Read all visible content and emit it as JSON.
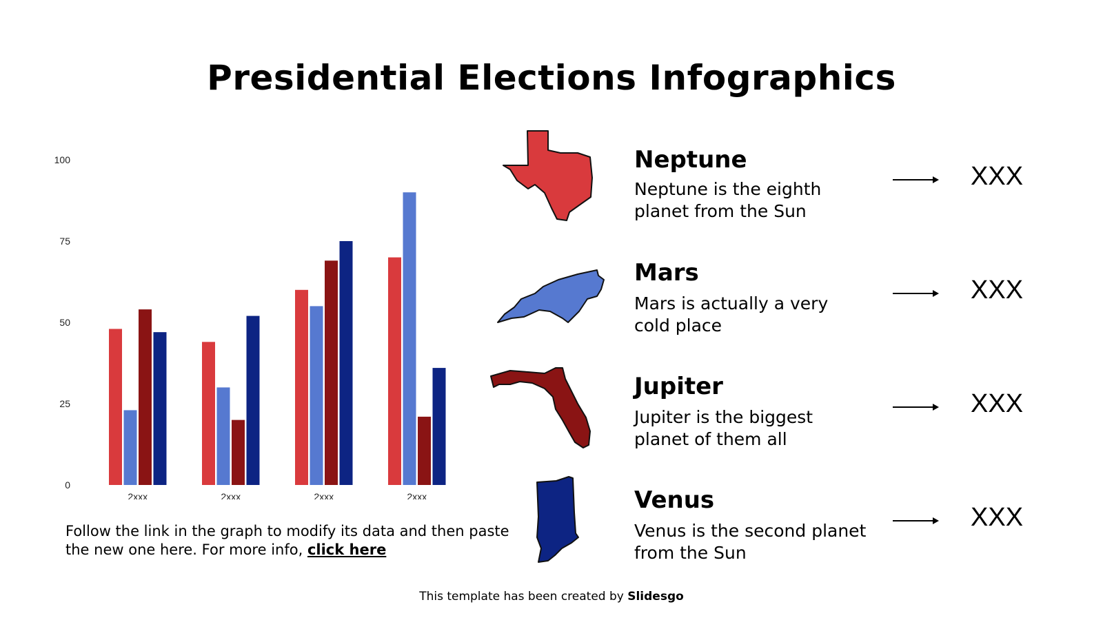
{
  "title": "Presidential Elections Infographics",
  "chart_data": {
    "type": "bar",
    "categories": [
      "2xxx",
      "2xxx",
      "2xxx",
      "2xxx"
    ],
    "yticks": [
      0,
      25,
      50,
      75,
      100
    ],
    "ylim": [
      0,
      100
    ],
    "colors": [
      "#d93a3d",
      "#5679d0",
      "#8a1414",
      "#0d2483"
    ],
    "series": [
      {
        "values": [
          48,
          44,
          60,
          70
        ]
      },
      {
        "values": [
          23,
          30,
          55,
          90
        ]
      },
      {
        "values": [
          54,
          20,
          69,
          21
        ]
      },
      {
        "values": [
          47,
          52,
          75,
          36
        ]
      }
    ]
  },
  "note": {
    "text": "Follow the link in the graph to modify its data and then paste the new one here. For more info, ",
    "link": "click here"
  },
  "items": [
    {
      "name": "Neptune",
      "desc": "Neptune is the eighth planet from the Sun",
      "value": "XXX",
      "state_icon": "texas-icon",
      "color": "#d93a3d"
    },
    {
      "name": "Mars",
      "desc": "Mars is actually a very cold place",
      "value": "XXX",
      "state_icon": "north-carolina-icon",
      "color": "#5679d0"
    },
    {
      "name": "Jupiter",
      "desc": "Jupiter is the biggest planet of them all",
      "value": "XXX",
      "state_icon": "florida-icon",
      "color": "#8a1414"
    },
    {
      "name": "Venus",
      "desc": "Venus is the second planet from the Sun",
      "value": "XXX",
      "state_icon": "indiana-icon",
      "color": "#0d2483"
    }
  ],
  "footer": {
    "text": "This template has been created by ",
    "brand": "Slidesgo"
  }
}
